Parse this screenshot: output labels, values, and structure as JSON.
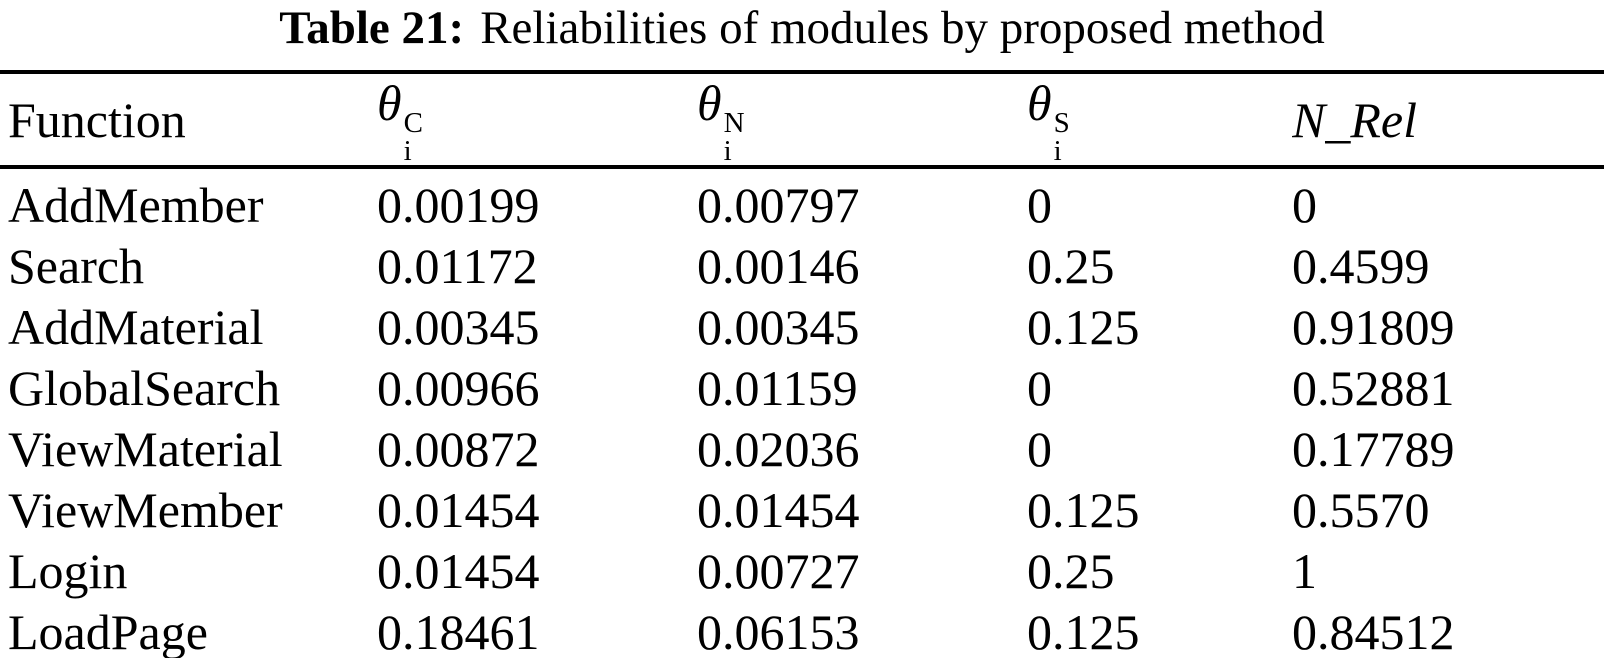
{
  "caption": {
    "label": "Table 21:",
    "text": "Reliabilities of modules by proposed method"
  },
  "table": {
    "headers": {
      "function": "Function",
      "theta_c": {
        "base": "θ",
        "sub": "i",
        "sup": "C"
      },
      "theta_n": {
        "base": "θ",
        "sub": "i",
        "sup": "N"
      },
      "theta_s": {
        "base": "θ",
        "sub": "i",
        "sup": "S"
      },
      "n_rel": "N_Rel"
    },
    "rows": [
      {
        "function": "AddMember",
        "theta_c": "0.00199",
        "theta_n": "0.00797",
        "theta_s": "0",
        "n_rel": "0"
      },
      {
        "function": "Search",
        "theta_c": "0.01172",
        "theta_n": "0.00146",
        "theta_s": "0.25",
        "n_rel": "0.4599"
      },
      {
        "function": "AddMaterial",
        "theta_c": "0.00345",
        "theta_n": "0.00345",
        "theta_s": "0.125",
        "n_rel": "0.91809"
      },
      {
        "function": "GlobalSearch",
        "theta_c": "0.00966",
        "theta_n": "0.01159",
        "theta_s": "0",
        "n_rel": "0.52881"
      },
      {
        "function": "ViewMaterial",
        "theta_c": "0.00872",
        "theta_n": "0.02036",
        "theta_s": "0",
        "n_rel": "0.17789"
      },
      {
        "function": "ViewMember",
        "theta_c": "0.01454",
        "theta_n": "0.01454",
        "theta_s": "0.125",
        "n_rel": "0.5570"
      },
      {
        "function": "Login",
        "theta_c": "0.01454",
        "theta_n": "0.00727",
        "theta_s": "0.25",
        "n_rel": "1"
      },
      {
        "function": "LoadPage",
        "theta_c": "0.18461",
        "theta_n": "0.06153",
        "theta_s": "0.125",
        "n_rel": "0.84512"
      }
    ]
  }
}
